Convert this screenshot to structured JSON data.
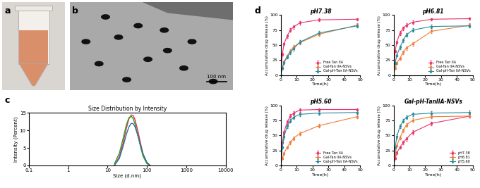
{
  "panel_labels": [
    "a",
    "b",
    "c",
    "d"
  ],
  "images": {
    "scale_bar": "100 nm"
  },
  "chart_data": [
    {
      "type": "line",
      "title": "Size Distribution by Intensity",
      "x_label": "Size (d.nm)",
      "y_label": "Intensity (Percent)",
      "log": "x",
      "xlim": [
        0.1,
        10000
      ],
      "xticks": [
        0.1,
        1,
        10,
        100,
        1000,
        10000
      ],
      "ylim": [
        0,
        15
      ],
      "yticks": [
        0,
        5,
        10,
        15
      ],
      "grid": false,
      "x": [
        15,
        20,
        25,
        30,
        35,
        40,
        45,
        50,
        60,
        70,
        80,
        100,
        120
      ],
      "series": [
        {
          "color": "#e8303a",
          "values": [
            0,
            2.5,
            6.5,
            10.5,
            13.3,
            14.4,
            14.2,
            13.0,
            9.5,
            6.0,
            3.3,
            0.8,
            0
          ]
        },
        {
          "color": "#2aa02a",
          "values": [
            0.5,
            3.5,
            7.8,
            11.5,
            13.6,
            14.0,
            13.3,
            11.8,
            8.2,
            5.0,
            2.6,
            0.5,
            0
          ]
        },
        {
          "color": "#2e6fa8",
          "values": [
            0,
            2.0,
            5.5,
            8.8,
            11.0,
            12.0,
            11.9,
            11.0,
            8.3,
            5.5,
            3.2,
            0.9,
            0
          ]
        }
      ]
    },
    {
      "type": "line",
      "title": "pH7.38",
      "x_label": "Time(h)",
      "y_label": "Accumulative drug release (%)",
      "xlim": [
        0,
        50
      ],
      "xticks": [
        0,
        10,
        20,
        30,
        40,
        50
      ],
      "ylim": [
        0,
        100
      ],
      "yticks": [
        0,
        25,
        50,
        75,
        100
      ],
      "legend": "lower right",
      "marker": "o",
      "x": [
        0,
        1,
        2,
        4,
        6,
        8,
        12,
        24,
        48
      ],
      "series": [
        {
          "name": "Free Tan IIA",
          "color": "#e8336b",
          "values": [
            0,
            35,
            52,
            65,
            75,
            80,
            87,
            92,
            93
          ],
          "errors": [
            0,
            2,
            2,
            3,
            3,
            3,
            3,
            2,
            2
          ]
        },
        {
          "name": "Gal-Tan IIA-NSVs",
          "color": "#f07d3c",
          "values": [
            0,
            12,
            22,
            32,
            40,
            47,
            54,
            68,
            83
          ],
          "errors": [
            0,
            2,
            2,
            2,
            3,
            3,
            3,
            3,
            3
          ]
        },
        {
          "name": "Gal-pH-Tan IIA-NSVs",
          "color": "#2a8a9a",
          "values": [
            0,
            12,
            21,
            30,
            38,
            44,
            55,
            70,
            82
          ],
          "errors": [
            0,
            2,
            2,
            2,
            3,
            3,
            3,
            3,
            3
          ]
        }
      ]
    },
    {
      "type": "line",
      "title": "pH6.81",
      "x_label": "Time(h)",
      "y_label": "Accumulative drug release (%)",
      "xlim": [
        0,
        50
      ],
      "xticks": [
        0,
        10,
        20,
        30,
        40,
        50
      ],
      "ylim": [
        0,
        100
      ],
      "yticks": [
        0,
        25,
        50,
        75,
        100
      ],
      "legend": "lower right",
      "marker": "o",
      "x": [
        0,
        1,
        2,
        4,
        6,
        8,
        12,
        24,
        48
      ],
      "series": [
        {
          "name": "Free Tan IIA",
          "color": "#e8336b",
          "values": [
            0,
            40,
            55,
            70,
            78,
            83,
            88,
            93,
            94
          ],
          "errors": [
            0,
            2,
            2,
            3,
            3,
            3,
            3,
            2,
            2
          ]
        },
        {
          "name": "Gal-Tan IIA-NSVs",
          "color": "#f07d3c",
          "values": [
            0,
            12,
            20,
            28,
            38,
            45,
            52,
            73,
            83
          ],
          "errors": [
            0,
            2,
            2,
            2,
            3,
            3,
            3,
            3,
            3
          ]
        },
        {
          "name": "Gal-pH-Tan IIA-NSVs",
          "color": "#2a8a9a",
          "values": [
            0,
            20,
            33,
            46,
            58,
            67,
            75,
            81,
            82
          ],
          "errors": [
            0,
            2,
            2,
            3,
            3,
            3,
            3,
            3,
            3
          ]
        }
      ]
    },
    {
      "type": "line",
      "title": "pH5.60",
      "x_label": "Time(h)",
      "y_label": "Accumulative drug release (%)",
      "xlim": [
        0,
        50
      ],
      "xticks": [
        0,
        10,
        20,
        30,
        40,
        50
      ],
      "ylim": [
        0,
        100
      ],
      "yticks": [
        0,
        25,
        50,
        75,
        100
      ],
      "legend": "lower right",
      "marker": "o",
      "x": [
        0,
        1,
        2,
        4,
        6,
        8,
        12,
        24,
        48
      ],
      "series": [
        {
          "name": "Free Tan IIA",
          "color": "#e8336b",
          "values": [
            0,
            38,
            55,
            72,
            82,
            87,
            92,
            93,
            93
          ],
          "errors": [
            0,
            2,
            2,
            3,
            3,
            3,
            3,
            2,
            2
          ]
        },
        {
          "name": "Gal-Tan IIA-NSVs",
          "color": "#f07d3c",
          "values": [
            0,
            12,
            20,
            30,
            38,
            45,
            53,
            66,
            81
          ],
          "errors": [
            0,
            2,
            2,
            2,
            3,
            3,
            3,
            3,
            3
          ]
        },
        {
          "name": "Gal-pH-Tan IIA-NSVs",
          "color": "#2a8a9a",
          "values": [
            0,
            30,
            48,
            65,
            74,
            80,
            85,
            87,
            88
          ],
          "errors": [
            0,
            2,
            3,
            3,
            3,
            3,
            3,
            3,
            3
          ]
        }
      ]
    },
    {
      "type": "line",
      "title": "Gal-pH-TanIIA-NSVs",
      "x_label": "Time(h)",
      "y_label": "Accumulative drug release (%)",
      "xlim": [
        0,
        50
      ],
      "xticks": [
        0,
        10,
        20,
        30,
        40,
        50
      ],
      "ylim": [
        0,
        100
      ],
      "yticks": [
        0,
        25,
        50,
        75,
        100
      ],
      "legend": "lower right",
      "marker": "o",
      "x": [
        0,
        1,
        2,
        4,
        6,
        8,
        12,
        24,
        48
      ],
      "series": [
        {
          "name": "pH7.38",
          "color": "#e8336b",
          "values": [
            0,
            12,
            21,
            30,
            38,
            44,
            55,
            70,
            82
          ],
          "errors": [
            0,
            2,
            2,
            2,
            3,
            3,
            3,
            3,
            3
          ]
        },
        {
          "name": "pH6.81",
          "color": "#f07d3c",
          "values": [
            0,
            20,
            33,
            46,
            58,
            67,
            75,
            81,
            82
          ],
          "errors": [
            0,
            2,
            2,
            3,
            3,
            3,
            3,
            3,
            3
          ]
        },
        {
          "name": "pH5.60",
          "color": "#2a8a9a",
          "values": [
            0,
            30,
            48,
            65,
            74,
            80,
            85,
            87,
            88
          ],
          "errors": [
            0,
            2,
            3,
            3,
            3,
            3,
            3,
            3,
            3
          ]
        }
      ]
    }
  ]
}
